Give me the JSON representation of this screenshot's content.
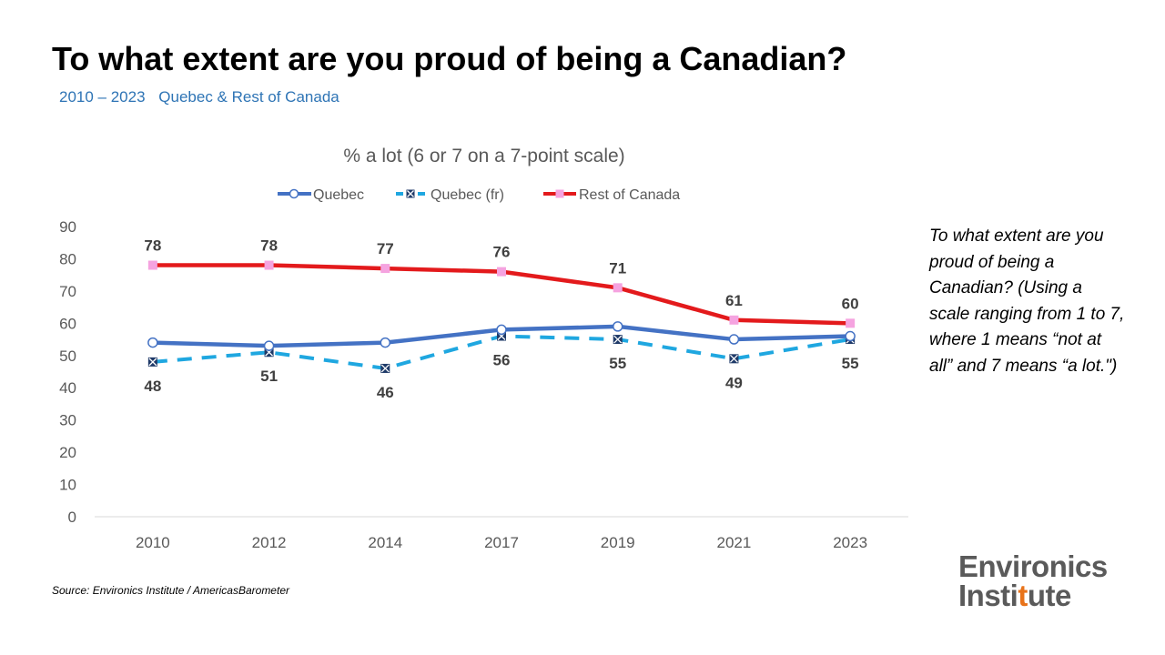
{
  "header": {
    "title": "To what extent are you proud of being a Canadian?",
    "years": "2010 – 2023",
    "region": "Quebec & Rest of Canada"
  },
  "side_note": "To what extent are you proud of being a Canadian? (Using a scale ranging from 1 to 7, where 1 means “not at all” and 7 means “a lot.\")",
  "source": "Source: Environics Institute / AmericasBarometer",
  "logo": {
    "line1": "Environics",
    "line2_pre": "Insti",
    "line2_accent": "t",
    "line2_post": "ute"
  },
  "colors": {
    "quebec": "#4472c4",
    "quebec_fr": "#1fa7e0",
    "rest_of_canada": "#e31a1c",
    "roc_marker": "#f5a3e0",
    "qfr_marker": "#1f3a68",
    "accent": "#e8731a"
  },
  "chart_data": {
    "type": "line",
    "title": "% a lot (6 or 7 on a 7-point scale)",
    "categories": [
      "2010",
      "2012",
      "2014",
      "2017",
      "2019",
      "2021",
      "2023"
    ],
    "ylim": [
      0,
      90
    ],
    "yticks": [
      0,
      10,
      20,
      30,
      40,
      50,
      60,
      70,
      80,
      90
    ],
    "legend_position": "top",
    "gridlines": false,
    "series": [
      {
        "name": "Quebec",
        "values": [
          54,
          53,
          54,
          58,
          59,
          55,
          56
        ],
        "style": "solid",
        "marker": "circle",
        "labels": false
      },
      {
        "name": "Quebec (fr)",
        "values": [
          48,
          51,
          46,
          56,
          55,
          49,
          55
        ],
        "style": "dashed",
        "marker": "x-square",
        "labels": true,
        "label_position": "below"
      },
      {
        "name": "Rest of Canada",
        "values": [
          78,
          78,
          77,
          76,
          71,
          61,
          60
        ],
        "style": "solid",
        "marker": "square",
        "labels": true,
        "label_position": "above"
      }
    ]
  }
}
